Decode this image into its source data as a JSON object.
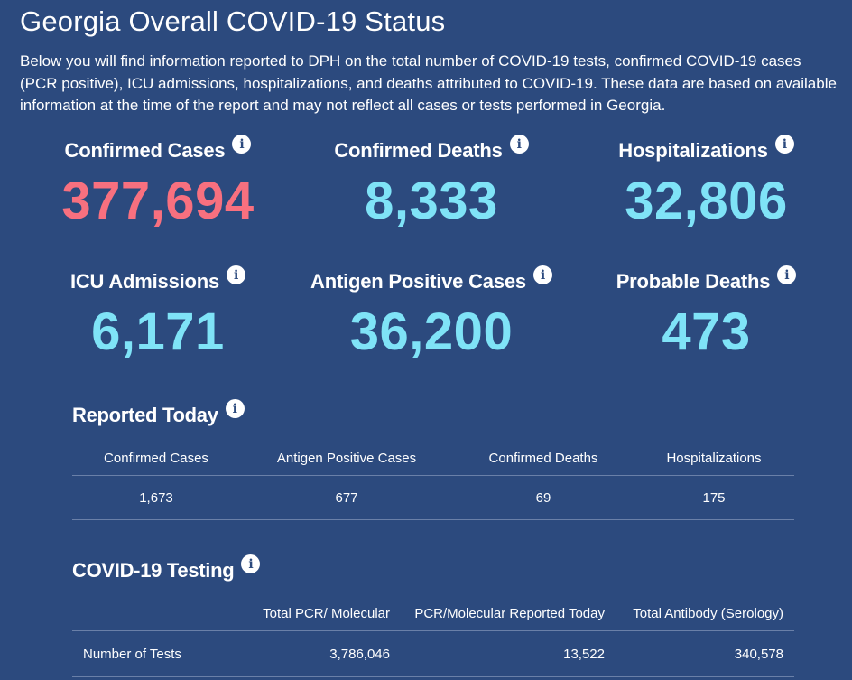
{
  "title": "Georgia Overall COVID-19 Status",
  "intro": "Below you will find information reported to DPH on the total number of COVID-19 tests, confirmed COVID-19 cases (PCR positive), ICU admissions, hospitalizations, and deaths attributed to COVID-19. These data are based on available information at the time of the report and may not reflect all cases or tests performed in Georgia.",
  "info_glyph": "i",
  "stats": [
    {
      "label": "Confirmed Cases",
      "value": "377,694",
      "color": "#f8707f"
    },
    {
      "label": "Confirmed Deaths",
      "value": "8,333",
      "color": "#7fe3f7"
    },
    {
      "label": "Hospitalizations",
      "value": "32,806",
      "color": "#7fe3f7"
    },
    {
      "label": "ICU Admissions",
      "value": "6,171",
      "color": "#7fe3f7"
    },
    {
      "label": "Antigen Positive Cases",
      "value": "36,200",
      "color": "#7fe3f7"
    },
    {
      "label": "Probable Deaths",
      "value": "473",
      "color": "#7fe3f7"
    }
  ],
  "reported_today": {
    "title": "Reported Today",
    "headers": [
      "Confirmed Cases",
      "Antigen Positive Cases",
      "Confirmed Deaths",
      "Hospitalizations"
    ],
    "values": [
      "1,673",
      "677",
      "69",
      "175"
    ]
  },
  "testing": {
    "title": "COVID-19 Testing",
    "headers": [
      "",
      "Total PCR/ Molecular",
      "PCR/Molecular Reported Today",
      "Total Antibody (Serology)"
    ],
    "row": [
      "Number of Tests",
      "3,786,046",
      "13,522",
      "340,578"
    ]
  }
}
